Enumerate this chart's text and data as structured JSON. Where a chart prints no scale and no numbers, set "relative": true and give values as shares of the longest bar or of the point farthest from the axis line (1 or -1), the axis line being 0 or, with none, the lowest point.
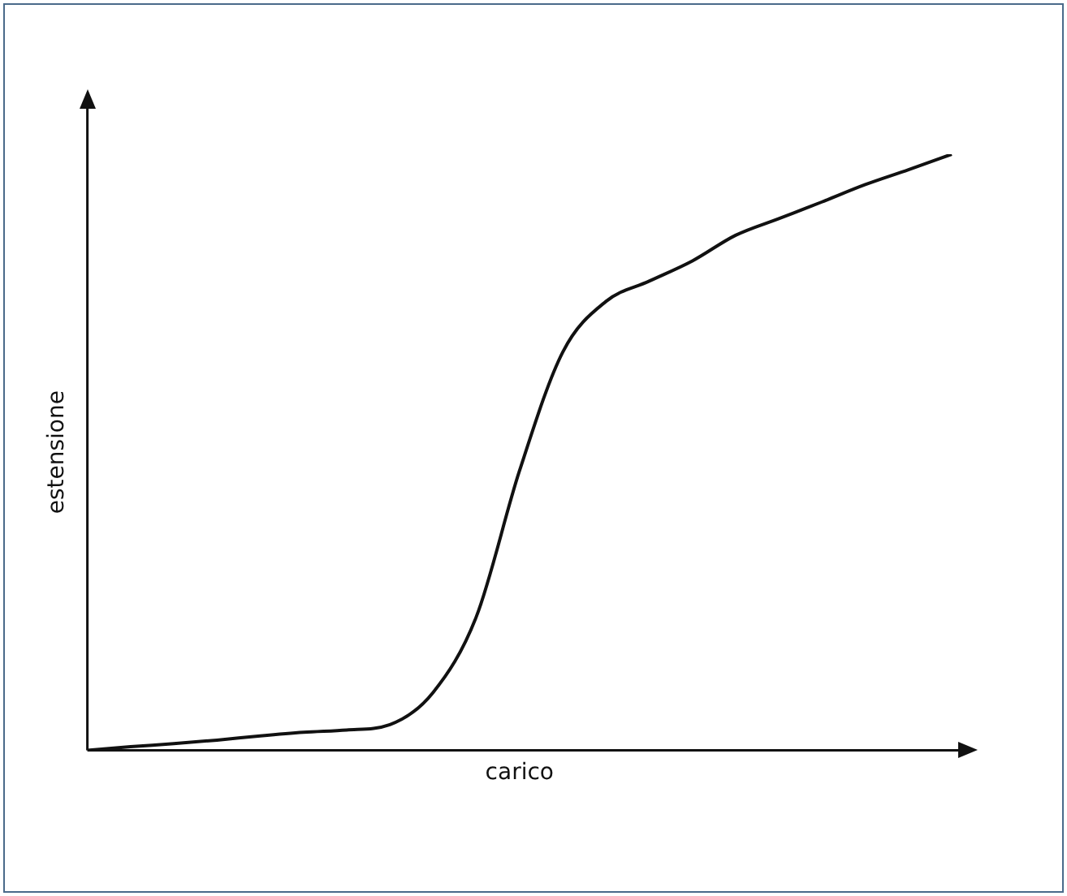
{
  "chart_data": {
    "type": "line",
    "relative": true,
    "xlabel": "carico",
    "ylabel": "estensione",
    "color": "#111111",
    "marker": "none",
    "line_style": "solid",
    "grid": false,
    "legend": false,
    "tick_labels": false,
    "categories": [
      null,
      null,
      null,
      null,
      null,
      null,
      null,
      null,
      null,
      null,
      null,
      null,
      null,
      null,
      null,
      null,
      null,
      null,
      null,
      null,
      null
    ],
    "values": [
      0,
      0.006,
      0.011,
      0.017,
      0.024,
      0.03,
      0.034,
      0.043,
      0.097,
      0.224,
      0.469,
      0.668,
      0.753,
      0.787,
      0.821,
      0.864,
      0.892,
      0.92,
      0.949,
      0.974,
      1
    ]
  }
}
